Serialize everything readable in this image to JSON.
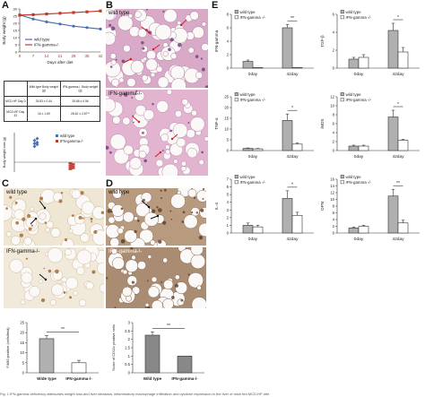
{
  "panels": {
    "A": "A",
    "B": "B",
    "C": "C",
    "D": "D",
    "E": "E"
  },
  "colors": {
    "wild_type_line": "#4a6fb5",
    "ifn_line": "#c0392b",
    "bar_grey": "#b0b0b0",
    "bar_white": "#ffffff",
    "bar_dark_grey": "#888888"
  },
  "micro_labels": {
    "b_top": "wild type",
    "b_bottom": "IFN-gamma-/-",
    "c_top": "wild type",
    "c_bottom": "IFN-gamma-/-",
    "d_top": "wild type",
    "d_bottom": "IFN-gamma-/-"
  },
  "table": {
    "header": [
      "",
      "Wild type\nBody weight (g)",
      "IFN-gamma-/-\nBody weight (g)"
    ],
    "rows": [
      [
        "MCD-HF\nDay 0",
        "25.83 ± 0.44",
        "25.68 ± 0.56"
      ],
      [
        "MCD-HF\nDay 42",
        "16 ± 1.69",
        "28.62 ± 2.87**"
      ]
    ]
  },
  "caption": "Fig. 1 IFN-gamma deficiency attenuates weight loss and liver steatosis, inflammatory macrophage infiltration and cytokine expression in the liver of mice fed MCD-HF diet",
  "chart_data": [
    {
      "id": "A-weight-line",
      "type": "line",
      "ylabel": "Body weight (g)",
      "xlabel": "Days after diet",
      "x": [
        0,
        7,
        14,
        21,
        28,
        35,
        42
      ],
      "xticks": [
        "0",
        "7",
        "14",
        "21",
        "28",
        "35",
        "42"
      ],
      "ylim": [
        0,
        30
      ],
      "yticks": [
        0,
        5,
        10,
        15,
        20,
        25,
        30
      ],
      "legend": "bottom-left",
      "series": [
        {
          "name": "wild type",
          "values": [
            25.8,
            23.0,
            21.0,
            19.5,
            18.0,
            17.0,
            16.0
          ]
        },
        {
          "name": "IFN-gamma-/-",
          "values": [
            25.7,
            26.0,
            26.5,
            27.0,
            27.5,
            28.0,
            28.6
          ]
        }
      ]
    },
    {
      "id": "A-weight-dots",
      "type": "scatter",
      "ylabel": "Body weight loss (g)",
      "categories": [
        "wild type",
        "IFN-gamma-/-"
      ],
      "legend": "top-right",
      "series": [
        {
          "name": "wild type",
          "values": [
            8,
            9,
            9.5,
            10,
            11,
            12
          ]
        },
        {
          "name": "IFN-gamma-/-",
          "values": [
            -0.5,
            -1,
            -1.5,
            -2,
            -2.5,
            -3,
            -3.5
          ]
        }
      ]
    },
    {
      "id": "C-f480",
      "type": "bar",
      "ylabel": "F4/80 positive (cells/field)",
      "categories": [
        "Wide type",
        "IFN-gamma-/-"
      ],
      "values": [
        17,
        5
      ],
      "errors": [
        1.5,
        1.2
      ],
      "ylim": [
        0,
        25
      ],
      "yticks": [
        0,
        5,
        10,
        15,
        20,
        25
      ],
      "significance": "**"
    },
    {
      "id": "D-cd11c",
      "type": "bar",
      "ylabel": "Score of CD11c positive cells",
      "categories": [
        "Wild type",
        "IFN-gamma-/-"
      ],
      "values": [
        2.25,
        1.0
      ],
      "errors": [
        0.2,
        0
      ],
      "ylim": [
        0,
        3
      ],
      "yticks": [
        0,
        0.5,
        1,
        1.5,
        2,
        2.5,
        3
      ],
      "significance": "**"
    },
    {
      "id": "E-ifn-gamma",
      "type": "bar",
      "ylabel": "IFN-gamma",
      "categories": [
        "0day",
        "42day"
      ],
      "series": [
        {
          "name": "wild type",
          "values": [
            1,
            6
          ],
          "errors": [
            0.2,
            0.5
          ]
        },
        {
          "name": "IFN-gamma -/-",
          "values": [
            0.1,
            0.1
          ],
          "errors": [
            0,
            0
          ]
        }
      ],
      "ylim": [
        0,
        8
      ],
      "yticks": [
        0,
        2,
        4,
        6,
        8
      ],
      "legend": "top-left",
      "significance": "**"
    },
    {
      "id": "E-tgf",
      "type": "bar",
      "ylabel": "TGF-β",
      "categories": [
        "0day",
        "42day"
      ],
      "series": [
        {
          "name": "wild type",
          "values": [
            1,
            4.2
          ],
          "errors": [
            0.2,
            0.8
          ]
        },
        {
          "name": "IFN-gamma -/-",
          "values": [
            1.2,
            1.8
          ],
          "errors": [
            0.3,
            0.5
          ]
        }
      ],
      "ylim": [
        0,
        6
      ],
      "yticks": [
        0,
        2,
        4,
        6
      ],
      "legend": "top-left",
      "significance": "*"
    },
    {
      "id": "E-tnf",
      "type": "bar",
      "ylabel": "TNF-α",
      "categories": [
        "0day",
        "42day"
      ],
      "series": [
        {
          "name": "wild type",
          "values": [
            1,
            14
          ],
          "errors": [
            0.2,
            3
          ]
        },
        {
          "name": "IFN-gamma -/-",
          "values": [
            0.8,
            3
          ],
          "errors": [
            0.2,
            0.5
          ]
        }
      ],
      "ylim": [
        0,
        25
      ],
      "yticks": [
        0,
        5,
        10,
        15,
        20,
        25
      ],
      "legend": "top-left",
      "significance": "*"
    },
    {
      "id": "E-inos",
      "type": "bar",
      "ylabel": "iNOS",
      "categories": [
        "0day",
        "42day"
      ],
      "series": [
        {
          "name": "wild type",
          "values": [
            1,
            7.5
          ],
          "errors": [
            0.2,
            1.5
          ]
        },
        {
          "name": "IFN-gamma -/-",
          "values": [
            1,
            2.3
          ],
          "errors": [
            0.2,
            0.2
          ]
        }
      ],
      "ylim": [
        0,
        12
      ],
      "yticks": [
        0,
        2,
        4,
        6,
        8,
        10,
        12
      ],
      "legend": "top-left",
      "significance": "*"
    },
    {
      "id": "E-il4",
      "type": "bar",
      "ylabel": "IL-4",
      "categories": [
        "0day",
        "42day"
      ],
      "series": [
        {
          "name": "wild type",
          "values": [
            1,
            4.5
          ],
          "errors": [
            0.3,
            1
          ]
        },
        {
          "name": "IFN-gamma -/-",
          "values": [
            0.8,
            2.3
          ],
          "errors": [
            0.2,
            0.4
          ]
        }
      ],
      "ylim": [
        0,
        7
      ],
      "yticks": [
        0,
        1,
        2,
        3,
        4,
        5,
        6,
        7
      ],
      "legend": "top-left",
      "significance": "*"
    },
    {
      "id": "E-opn",
      "type": "bar",
      "ylabel": "OPN",
      "categories": [
        "0day",
        "42day"
      ],
      "series": [
        {
          "name": "wild type",
          "values": [
            1.5,
            11
          ],
          "errors": [
            0.3,
            2
          ]
        },
        {
          "name": "IFN-gamma -/-",
          "values": [
            2,
            3
          ],
          "errors": [
            0.3,
            0.8
          ]
        }
      ],
      "ylim": [
        0,
        16
      ],
      "yticks": [
        0,
        2,
        4,
        6,
        8,
        10,
        12,
        14,
        16
      ],
      "legend": "top-left",
      "significance": "**"
    }
  ]
}
